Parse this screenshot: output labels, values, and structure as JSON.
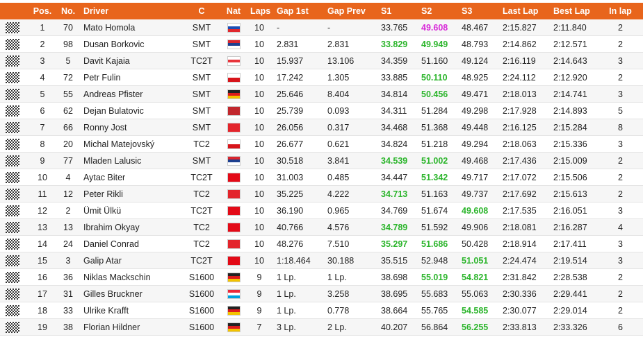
{
  "table": {
    "header": [
      "Pos.",
      "No.",
      "Driver",
      "C",
      "Nat",
      "Laps",
      "Gap 1st",
      "Gap Prev",
      "S1",
      "S2",
      "S3",
      "Last Lap",
      "Best Lap",
      "In lap"
    ],
    "rows": [
      [
        "1",
        "70",
        "Mato Homola",
        "SMT",
        "10",
        "-",
        "-",
        "33.765",
        "49.608",
        "48.467",
        "2:15.827",
        "2:11.840",
        "2"
      ],
      [
        "2",
        "98",
        "Dusan Borkovic",
        "SMT",
        "10",
        "2.831",
        "2.831",
        "33.829",
        "49.949",
        "48.793",
        "2:14.862",
        "2:12.571",
        "2"
      ],
      [
        "3",
        "5",
        "Davit Kajaia",
        "TC2T",
        "10",
        "15.937",
        "13.106",
        "34.359",
        "51.160",
        "49.124",
        "2:16.119",
        "2:14.643",
        "3"
      ],
      [
        "4",
        "72",
        "Petr Fulin",
        "SMT",
        "10",
        "17.242",
        "1.305",
        "33.885",
        "50.110",
        "48.925",
        "2:24.112",
        "2:12.920",
        "2"
      ],
      [
        "5",
        "55",
        "Andreas Pfister",
        "SMT",
        "10",
        "25.646",
        "8.404",
        "34.814",
        "50.456",
        "49.471",
        "2:18.013",
        "2:14.741",
        "3"
      ],
      [
        "6",
        "62",
        "Dejan Bulatovic",
        "SMT",
        "10",
        "25.739",
        "0.093",
        "34.311",
        "51.284",
        "49.298",
        "2:17.928",
        "2:14.893",
        "5"
      ],
      [
        "7",
        "66",
        "Ronny Jost",
        "SMT",
        "10",
        "26.056",
        "0.317",
        "34.468",
        "51.368",
        "49.448",
        "2:16.125",
        "2:15.284",
        "8"
      ],
      [
        "8",
        "20",
        "Michal Matejovský",
        "TC2",
        "10",
        "26.677",
        "0.621",
        "34.824",
        "51.218",
        "49.294",
        "2:18.063",
        "2:15.336",
        "3"
      ],
      [
        "9",
        "77",
        "Mladen Lalusic",
        "SMT",
        "10",
        "30.518",
        "3.841",
        "34.539",
        "51.002",
        "49.468",
        "2:17.436",
        "2:15.009",
        "2"
      ],
      [
        "10",
        "4",
        "Aytac Biter",
        "TC2T",
        "10",
        "31.003",
        "0.485",
        "34.447",
        "51.342",
        "49.717",
        "2:17.072",
        "2:15.506",
        "2"
      ],
      [
        "11",
        "12",
        "Peter Rikli",
        "TC2",
        "10",
        "35.225",
        "4.222",
        "34.713",
        "51.163",
        "49.737",
        "2:17.692",
        "2:15.613",
        "2"
      ],
      [
        "12",
        "2",
        "Ümit Ülkü",
        "TC2T",
        "10",
        "36.190",
        "0.965",
        "34.769",
        "51.674",
        "49.608",
        "2:17.535",
        "2:16.051",
        "3"
      ],
      [
        "13",
        "13",
        "Ibrahim Okyay",
        "TC2",
        "10",
        "40.766",
        "4.576",
        "34.789",
        "51.592",
        "49.906",
        "2:18.081",
        "2:16.287",
        "4"
      ],
      [
        "14",
        "24",
        "Daniel Conrad",
        "TC2",
        "10",
        "48.276",
        "7.510",
        "35.297",
        "51.686",
        "50.428",
        "2:18.914",
        "2:17.411",
        "3"
      ],
      [
        "15",
        "3",
        "Galip Atar",
        "TC2T",
        "10",
        "1:18.464",
        "30.188",
        "35.515",
        "52.948",
        "51.051",
        "2:24.474",
        "2:19.514",
        "3"
      ],
      [
        "16",
        "36",
        "Niklas Mackschin",
        "S1600",
        "9",
        "1 Lp.",
        "1 Lp.",
        "38.698",
        "55.019",
        "54.821",
        "2:31.842",
        "2:28.538",
        "2"
      ],
      [
        "17",
        "31",
        "Gilles Bruckner",
        "S1600",
        "9",
        "1 Lp.",
        "3.258",
        "38.695",
        "55.683",
        "55.063",
        "2:30.336",
        "2:29.441",
        "2"
      ],
      [
        "18",
        "33",
        "Ulrike Krafft",
        "S1600",
        "9",
        "1 Lp.",
        "0.778",
        "38.664",
        "55.765",
        "54.585",
        "2:30.077",
        "2:29.014",
        "2"
      ],
      [
        "19",
        "38",
        "Florian Hildner",
        "S1600",
        "7",
        "3 Lp.",
        "2 Lp.",
        "40.207",
        "56.864",
        "56.255",
        "2:33.813",
        "2:33.326",
        "6"
      ]
    ],
    "flags": [
      [
        "#ffffff",
        "#1b4fb5",
        "#e0282e"
      ],
      [
        "#d9262e",
        "#1d3f8f",
        "#ffffff"
      ],
      [
        "#ffffff",
        "#e8343b",
        "#ffffff"
      ],
      [
        "#ffffff",
        "#d7141a"
      ],
      [
        "#222222",
        "#dd1c1c",
        "#f3c300"
      ],
      [
        "#c1272d"
      ],
      [
        "#e3242b"
      ],
      [
        "#ffffff",
        "#d7141a"
      ],
      [
        "#d9262e",
        "#1d3f8f",
        "#ffffff"
      ],
      [
        "#e30a17"
      ],
      [
        "#e3242b"
      ],
      [
        "#e30a17"
      ],
      [
        "#e30a17"
      ],
      [
        "#e3242b"
      ],
      [
        "#e30a17"
      ],
      [
        "#222222",
        "#dd1c1c",
        "#f3c300"
      ],
      [
        "#ed2939",
        "#ffffff",
        "#00a1de"
      ],
      [
        "#222222",
        "#dd1c1c",
        "#f3c300"
      ],
      [
        "#222222",
        "#dd1c1c",
        "#f3c300"
      ]
    ],
    "highlights": [
      {
        "row": 0,
        "cell": 8,
        "color": "#d82ad8"
      },
      {
        "row": 1,
        "cell": 7,
        "color": "#2bb52b"
      },
      {
        "row": 1,
        "cell": 8,
        "color": "#2bb52b"
      },
      {
        "row": 3,
        "cell": 8,
        "color": "#2bb52b"
      },
      {
        "row": 4,
        "cell": 8,
        "color": "#2bb52b"
      },
      {
        "row": 8,
        "cell": 7,
        "color": "#2bb52b"
      },
      {
        "row": 8,
        "cell": 8,
        "color": "#2bb52b"
      },
      {
        "row": 9,
        "cell": 8,
        "color": "#2bb52b"
      },
      {
        "row": 10,
        "cell": 7,
        "color": "#2bb52b"
      },
      {
        "row": 11,
        "cell": 9,
        "color": "#2bb52b"
      },
      {
        "row": 12,
        "cell": 7,
        "color": "#2bb52b"
      },
      {
        "row": 13,
        "cell": 7,
        "color": "#2bb52b"
      },
      {
        "row": 13,
        "cell": 8,
        "color": "#2bb52b"
      },
      {
        "row": 14,
        "cell": 9,
        "color": "#2bb52b"
      },
      {
        "row": 15,
        "cell": 8,
        "color": "#2bb52b"
      },
      {
        "row": 15,
        "cell": 9,
        "color": "#2bb52b"
      },
      {
        "row": 17,
        "cell": 9,
        "color": "#2bb52b"
      },
      {
        "row": 18,
        "cell": 9,
        "color": "#2bb52b"
      }
    ]
  }
}
